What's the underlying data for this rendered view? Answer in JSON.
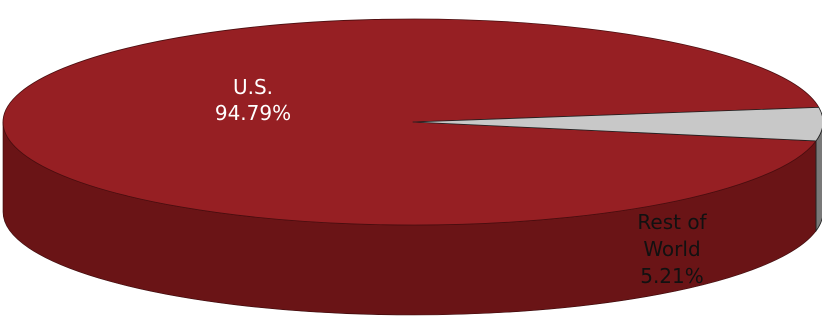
{
  "chart_data": {
    "type": "pie",
    "style": "3d",
    "title": "",
    "slices": [
      {
        "label_lines": [
          "U.S.",
          "94.79%"
        ],
        "value": 94.79,
        "top_color": "#961f23",
        "side_color": "#6a1416",
        "label_color": "#ffffff"
      },
      {
        "label_lines": [
          "Rest of",
          "World",
          "5.21%"
        ],
        "value": 5.21,
        "top_color": "#c8c8c8",
        "side_color": "#787878",
        "label_color": "#111111"
      }
    ]
  }
}
